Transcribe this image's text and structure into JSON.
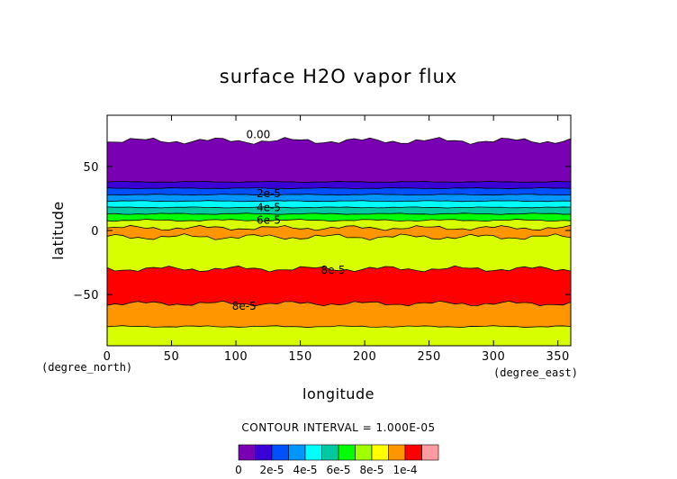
{
  "chart_data": {
    "type": "contour",
    "title": "surface H2O vapor flux",
    "xlabel": "longitude",
    "ylabel": "latitude",
    "x_unit": "(degree_east)",
    "y_unit": "(degree_north)",
    "xlim": [
      0,
      360
    ],
    "ylim": [
      -90,
      90
    ],
    "x_ticks": [
      0,
      50,
      100,
      150,
      200,
      250,
      300,
      350
    ],
    "y_ticks": [
      50,
      0,
      -50
    ],
    "y_tick_labels": [
      "50",
      "0",
      "−50"
    ],
    "grid": false,
    "contour_interval_text": "CONTOUR INTERVAL = 1.000E-05",
    "levels": [
      0,
      1e-05,
      2e-05,
      3e-05,
      4e-05,
      5e-05,
      6e-05,
      7e-05,
      8e-05,
      9e-05,
      0.0001,
      0.00011
    ],
    "colors": [
      "#7a00b4",
      "#3a00d6",
      "#0050ff",
      "#0096ff",
      "#00ffff",
      "#00c8a0",
      "#00ff00",
      "#a0ff00",
      "#ffff00",
      "#ff9600",
      "#ff0000",
      "#ff9aa0"
    ],
    "colorbar_tick_labels": [
      "0",
      "2e-5",
      "4e-5",
      "6e-5",
      "8e-5",
      "1e-4"
    ],
    "zonal_bands": [
      {
        "lat_top": 90,
        "lat_bottom": 70,
        "value": "<0"
      },
      {
        "lat_top": 70,
        "lat_bottom": 38,
        "value": "0-1e-5"
      },
      {
        "lat_top": 38,
        "lat_bottom": 33,
        "value": "1e-5-2e-5"
      },
      {
        "lat_top": 33,
        "lat_bottom": 28,
        "value": "2e-5-3e-5"
      },
      {
        "lat_top": 28,
        "lat_bottom": 23,
        "value": "3e-5-4e-5"
      },
      {
        "lat_top": 23,
        "lat_bottom": 18,
        "value": "4e-5-5e-5"
      },
      {
        "lat_top": 18,
        "lat_bottom": 13,
        "value": "5e-5-6e-5"
      },
      {
        "lat_top": 13,
        "lat_bottom": 8,
        "value": "6e-5-7e-5"
      },
      {
        "lat_top": 8,
        "lat_bottom": 2,
        "value": "7e-5-8e-5"
      },
      {
        "lat_top": 2,
        "lat_bottom": -5,
        "value": "8e-5-9e-5"
      },
      {
        "lat_top": -5,
        "lat_bottom": -30,
        "value": "7e-5-8e-5"
      },
      {
        "lat_top": -30,
        "lat_bottom": -57,
        "value": "9e-5-1e-4"
      },
      {
        "lat_top": -57,
        "lat_bottom": -75,
        "value": "8e-5-9e-5"
      },
      {
        "lat_top": -75,
        "lat_bottom": -90,
        "value": "7e-5-8e-5"
      }
    ],
    "contour_labels": [
      {
        "text": "0.00",
        "lon": 108,
        "lat": 75
      },
      {
        "text": "2e-5",
        "lon": 116,
        "lat": 29
      },
      {
        "text": "4e-5",
        "lon": 116,
        "lat": 18
      },
      {
        "text": "6e-5",
        "lon": 116,
        "lat": 8
      },
      {
        "text": "8e-5",
        "lon": 166,
        "lat": -31
      },
      {
        "text": "8e-5",
        "lon": 97,
        "lat": -59
      }
    ]
  }
}
